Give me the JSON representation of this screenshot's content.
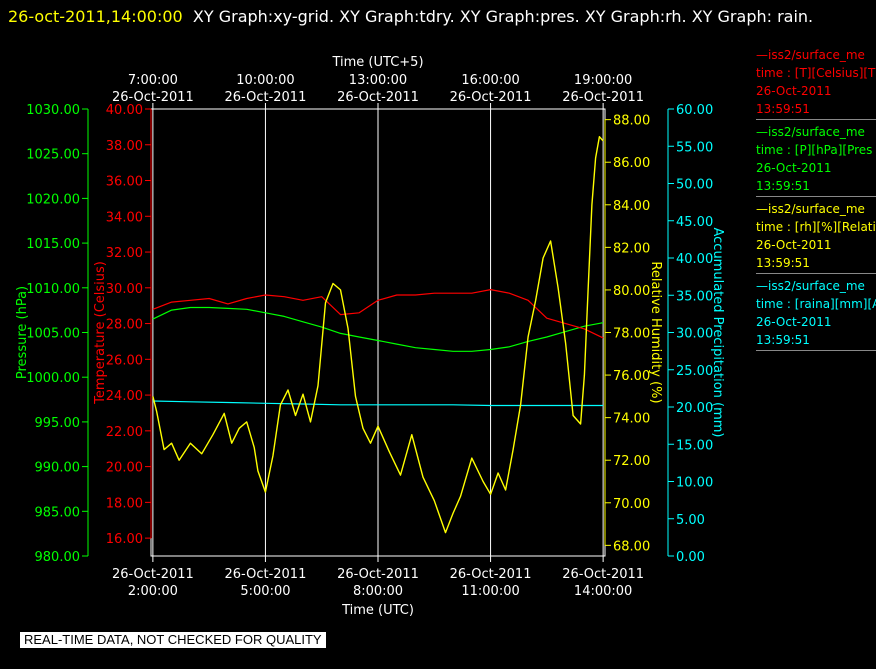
{
  "title": {
    "timestamp": "26-oct-2011,14:00:00",
    "rest": "XY Graph:xy-grid.  XY Graph:tdry.  XY Graph:pres.  XY Graph:rh.  XY Graph: rain."
  },
  "footer_note": "REAL-TIME DATA, NOT CHECKED FOR QUALITY",
  "legend": [
    {
      "line1": "—iss2/surface_me",
      "line2": "time : [T][Celsius][T",
      "line3": "26-Oct-2011",
      "line4": "13:59:51",
      "color": "#ff0000"
    },
    {
      "line1": "—iss2/surface_me",
      "line2": "time : [P][hPa][Pres",
      "line3": "26-Oct-2011",
      "line4": "13:59:51",
      "color": "#00ff00"
    },
    {
      "line1": "—iss2/surface_me",
      "line2": "time : [rh][%][Relati",
      "line3": "26-Oct-2011",
      "line4": "13:59:51",
      "color": "#ffff00"
    },
    {
      "line1": "—iss2/surface_me",
      "line2": "time : [raina][mm][A",
      "line3": "26-Oct-2011",
      "line4": "13:59:51",
      "color": "#00ffff"
    }
  ],
  "chart_data": {
    "type": "line",
    "x_bottom": {
      "label": "Time (UTC)",
      "ticks": [
        {
          "x": 0,
          "date": "26-Oct-2011",
          "time": "2:00:00"
        },
        {
          "x": 3,
          "date": "26-Oct-2011",
          "time": "5:00:00"
        },
        {
          "x": 6,
          "date": "26-Oct-2011",
          "time": "8:00:00"
        },
        {
          "x": 9,
          "date": "26-Oct-2011",
          "time": "11:00:00"
        },
        {
          "x": 12,
          "date": "26-Oct-2011",
          "time": "14:00:00"
        }
      ]
    },
    "x_top": {
      "label": "Time (UTC+5)",
      "ticks": [
        {
          "x": 0,
          "time": "7:00:00",
          "date": "26-Oct-2011"
        },
        {
          "x": 3,
          "time": "10:00:00",
          "date": "26-Oct-2011"
        },
        {
          "x": 6,
          "time": "13:00:00",
          "date": "26-Oct-2011"
        },
        {
          "x": 9,
          "time": "16:00:00",
          "date": "26-Oct-2011"
        },
        {
          "x": 12,
          "time": "19:00:00",
          "date": "26-Oct-2011"
        }
      ]
    },
    "x_range": [
      -0.05,
      12.05
    ],
    "grid": "vertical",
    "axes": [
      {
        "id": "pres",
        "label": "Pressure (hPa)",
        "color": "#00ff00",
        "range": [
          980,
          1030
        ],
        "ticks": [
          "980.00",
          "985.00",
          "990.00",
          "995.00",
          "1000.00",
          "1005.00",
          "1010.00",
          "1015.00",
          "1020.00",
          "1025.00",
          "1030.00"
        ]
      },
      {
        "id": "tdry",
        "label": "Temperature (Celsius)",
        "color": "#ff0000",
        "range": [
          15,
          40
        ],
        "ticks": [
          "16.00",
          "18.00",
          "20.00",
          "22.00",
          "24.00",
          "26.00",
          "28.00",
          "30.00",
          "32.00",
          "34.00",
          "36.00",
          "38.00",
          "40.00"
        ]
      },
      {
        "id": "rh",
        "label": "Relative Humidity (%)",
        "color": "#ffff00",
        "range": [
          67.5,
          88.5
        ],
        "ticks": [
          "68.00",
          "70.00",
          "72.00",
          "74.00",
          "76.00",
          "78.00",
          "80.00",
          "82.00",
          "84.00",
          "86.00",
          "88.00"
        ]
      },
      {
        "id": "rain",
        "label": "Accumulated Precipitation (mm)",
        "color": "#00ffff",
        "range": [
          0,
          60
        ],
        "ticks": [
          "0.00",
          "5.00",
          "10.00",
          "15.00",
          "20.00",
          "25.00",
          "30.00",
          "35.00",
          "40.00",
          "45.00",
          "50.00",
          "55.00",
          "60.00"
        ]
      }
    ],
    "series": [
      {
        "axis": "tdry",
        "color": "#ff0000",
        "x": [
          0,
          0.5,
          1,
          1.5,
          2,
          2.5,
          3,
          3.5,
          4,
          4.5,
          5,
          5.5,
          6,
          6.5,
          7,
          7.5,
          8,
          8.5,
          9,
          9.5,
          10,
          10.5,
          11,
          11.5,
          12
        ],
        "y": [
          28.8,
          29.2,
          29.3,
          29.4,
          29.1,
          29.4,
          29.6,
          29.5,
          29.3,
          29.5,
          28.5,
          28.6,
          29.3,
          29.6,
          29.6,
          29.7,
          29.7,
          29.7,
          29.9,
          29.7,
          29.3,
          28.3,
          28.0,
          27.7,
          27.2
        ]
      },
      {
        "axis": "pres",
        "color": "#00ff00",
        "x": [
          0,
          0.5,
          1,
          1.5,
          2,
          2.5,
          3,
          3.5,
          4,
          4.5,
          5,
          5.5,
          6,
          6.5,
          7,
          7.5,
          8,
          8.5,
          9,
          9.5,
          10,
          10.5,
          11,
          11.5,
          12
        ],
        "y": [
          1006.5,
          1007.5,
          1007.8,
          1007.8,
          1007.7,
          1007.6,
          1007.2,
          1006.8,
          1006.2,
          1005.6,
          1004.9,
          1004.5,
          1004.1,
          1003.7,
          1003.3,
          1003.1,
          1002.9,
          1002.9,
          1003.1,
          1003.4,
          1004.0,
          1004.5,
          1005.1,
          1005.7,
          1006.1
        ]
      },
      {
        "axis": "rh",
        "color": "#ffff00",
        "x": [
          0,
          0.1,
          0.3,
          0.5,
          0.7,
          1.0,
          1.3,
          1.6,
          1.9,
          2.1,
          2.3,
          2.5,
          2.7,
          2.8,
          3.0,
          3.2,
          3.4,
          3.6,
          3.8,
          4.0,
          4.2,
          4.4,
          4.6,
          4.8,
          5.0,
          5.2,
          5.4,
          5.6,
          5.8,
          6.0,
          6.3,
          6.6,
          6.9,
          7.2,
          7.5,
          7.8,
          8.0,
          8.2,
          8.5,
          8.8,
          9.0,
          9.2,
          9.4,
          9.6,
          9.8,
          10.0,
          10.2,
          10.4,
          10.6,
          10.8,
          11.0,
          11.2,
          11.4,
          11.5,
          11.6,
          11.7,
          11.8,
          11.9,
          12.0
        ],
        "y": [
          75.0,
          74.3,
          72.5,
          72.8,
          72.0,
          72.8,
          72.3,
          73.2,
          74.2,
          72.8,
          73.5,
          73.8,
          72.6,
          71.5,
          70.5,
          72.2,
          74.6,
          75.3,
          74.1,
          75.1,
          73.8,
          75.5,
          79.4,
          80.3,
          80.0,
          78.2,
          75.0,
          73.5,
          72.8,
          73.6,
          72.4,
          71.3,
          73.2,
          71.2,
          70.1,
          68.6,
          69.5,
          70.3,
          72.1,
          71.0,
          70.4,
          71.4,
          70.6,
          72.5,
          74.6,
          77.8,
          79.5,
          81.5,
          82.3,
          80.1,
          77.5,
          74.1,
          73.7,
          76.0,
          80.0,
          84.0,
          86.2,
          87.2,
          87.0
        ]
      },
      {
        "axis": "rain",
        "color": "#00ffff",
        "x": [
          0,
          1,
          2,
          3,
          4,
          5,
          6,
          7,
          8,
          9,
          10,
          11,
          12
        ],
        "y": [
          20.8,
          20.7,
          20.6,
          20.5,
          20.4,
          20.3,
          20.3,
          20.3,
          20.3,
          20.2,
          20.2,
          20.2,
          20.2
        ]
      }
    ]
  }
}
